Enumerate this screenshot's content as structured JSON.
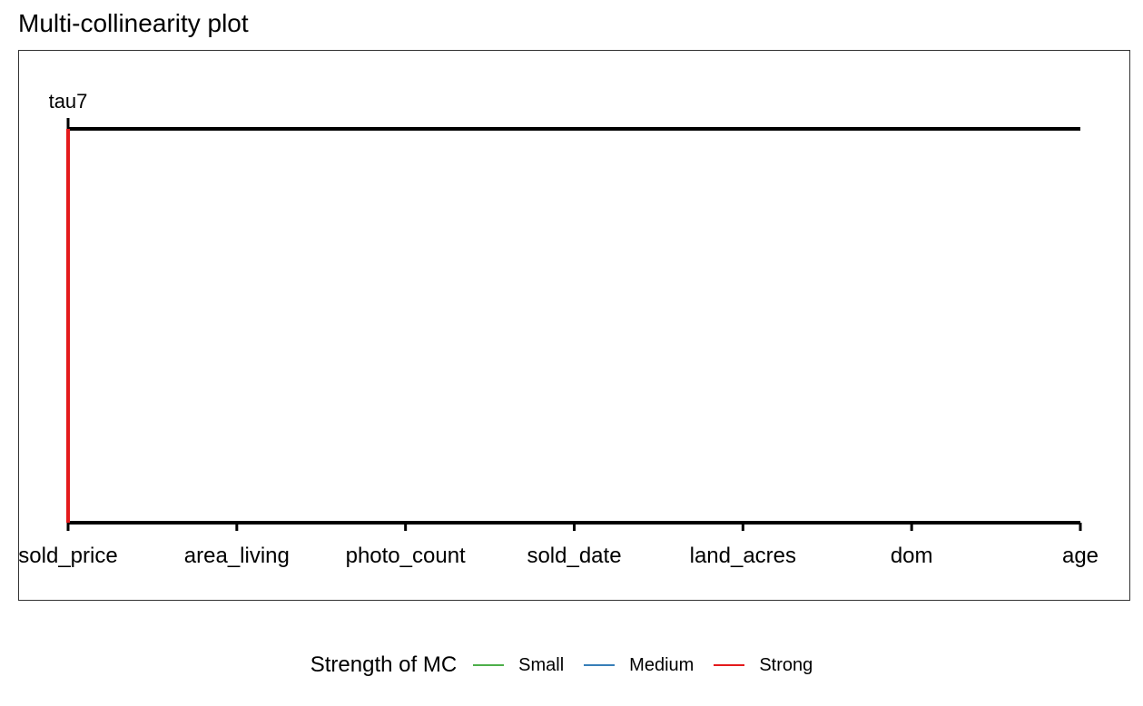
{
  "chart_data": {
    "type": "line",
    "title": "Multi-collinearity plot",
    "top_label": "tau7",
    "categories": [
      "sold_price",
      "area_living",
      "photo_count",
      "sold_date",
      "land_acres",
      "dom",
      "age"
    ],
    "tau_line": {
      "name": "tau7",
      "from": "sold_price",
      "to": "age",
      "color": "#000000"
    },
    "mc_links": [
      {
        "variable": "sold_price",
        "strength": "Strong",
        "color": "#e41a1c"
      }
    ],
    "legend": {
      "title": "Strength of MC",
      "position": "bottom",
      "items": [
        {
          "label": "Small",
          "color": "#4daf4a"
        },
        {
          "label": "Medium",
          "color": "#377eb8"
        },
        {
          "label": "Strong",
          "color": "#e41a1c"
        }
      ]
    }
  }
}
